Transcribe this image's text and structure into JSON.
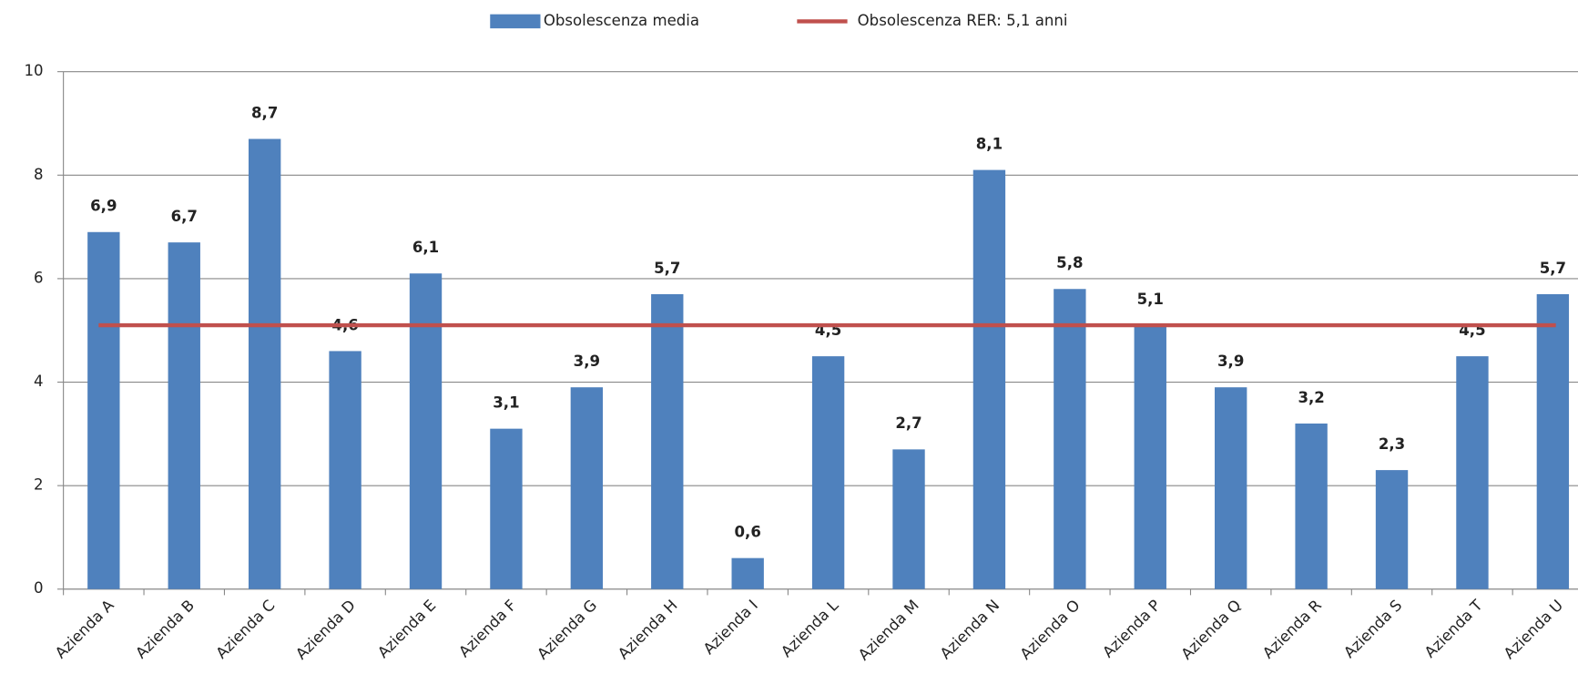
{
  "chart_data": {
    "type": "bar",
    "categories": [
      "Azienda A",
      "Azienda B",
      "Azienda C",
      "Azienda D",
      "Azienda E",
      "Azienda F",
      "Azienda G",
      "Azienda H",
      "Azienda I",
      "Azienda L",
      "Azienda M",
      "Azienda N",
      "Azienda O",
      "Azienda P",
      "Azienda Q",
      "Azienda R",
      "Azienda S",
      "Azienda T",
      "Azienda U"
    ],
    "series": [
      {
        "name": "Obsolescenza media",
        "color": "#4f81bd",
        "type": "bar",
        "values": [
          6.9,
          6.7,
          8.7,
          4.6,
          6.1,
          3.1,
          3.9,
          5.7,
          0.6,
          4.5,
          2.7,
          8.1,
          5.8,
          5.1,
          3.9,
          3.2,
          2.3,
          4.5,
          5.7
        ],
        "value_labels": [
          "6,9",
          "6,7",
          "8,7",
          "4,6",
          "6,1",
          "3,1",
          "3,9",
          "5,7",
          "0,6",
          "4,5",
          "2,7",
          "8,1",
          "5,8",
          "5,1",
          "3,9",
          "3,2",
          "2,3",
          "4,5",
          "5,7"
        ]
      },
      {
        "name": "Obsolescenza RER: 5,1 anni",
        "color": "#c0504d",
        "type": "line",
        "values": [
          5.1,
          5.1,
          5.1,
          5.1,
          5.1,
          5.1,
          5.1,
          5.1,
          5.1,
          5.1,
          5.1,
          5.1,
          5.1,
          5.1,
          5.1,
          5.1,
          5.1,
          5.1,
          5.1
        ]
      }
    ],
    "ylim": [
      0,
      10
    ],
    "yticks": [
      0,
      2,
      4,
      6,
      8,
      10
    ],
    "grid": true,
    "legend": "top"
  }
}
